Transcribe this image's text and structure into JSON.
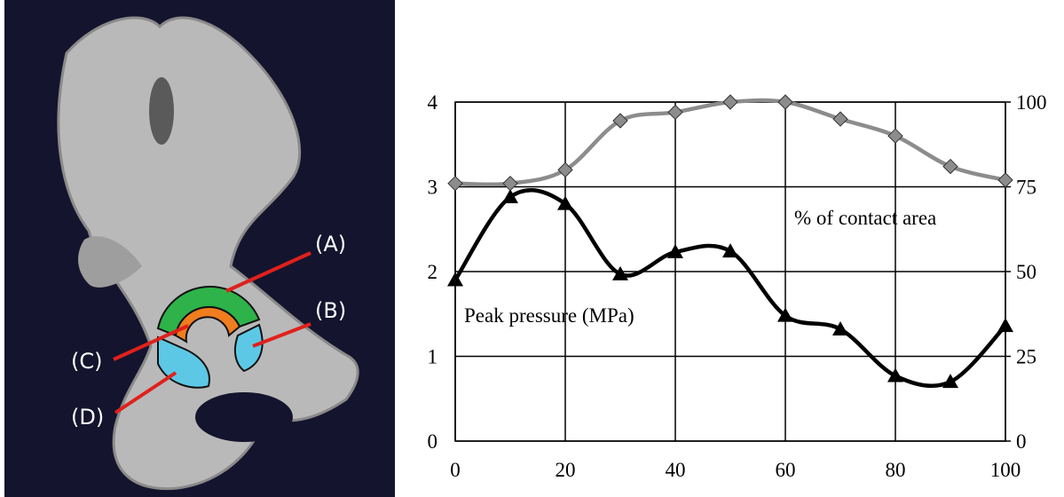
{
  "image": {
    "labels": [
      "(A)",
      "(B)",
      "(C)",
      "(D)"
    ]
  },
  "chart_data": {
    "type": "line",
    "x": [
      0,
      10,
      20,
      30,
      40,
      50,
      60,
      70,
      80,
      90,
      100
    ],
    "xlim": [
      0,
      100
    ],
    "xticks": [
      0,
      20,
      40,
      60,
      80,
      100
    ],
    "ylim": [
      0,
      4
    ],
    "yticks": [
      0,
      1,
      2,
      3,
      4
    ],
    "y2lim": [
      0,
      100
    ],
    "y2ticks": [
      0,
      25,
      50,
      75,
      100
    ],
    "grid": true,
    "series": [
      {
        "name": "Peak pressure (MPa)",
        "color": "#000000",
        "marker": "triangle",
        "values": [
          1.9,
          2.88,
          2.8,
          1.97,
          2.23,
          2.24,
          1.48,
          1.32,
          0.77,
          0.7,
          1.36
        ]
      },
      {
        "name": "% of contact area",
        "color": "#8c8c8c",
        "marker": "diamond",
        "axis": "y2",
        "values": [
          76,
          76,
          80,
          94.5,
          97,
          100,
          100,
          95,
          90,
          81,
          77
        ]
      }
    ]
  }
}
